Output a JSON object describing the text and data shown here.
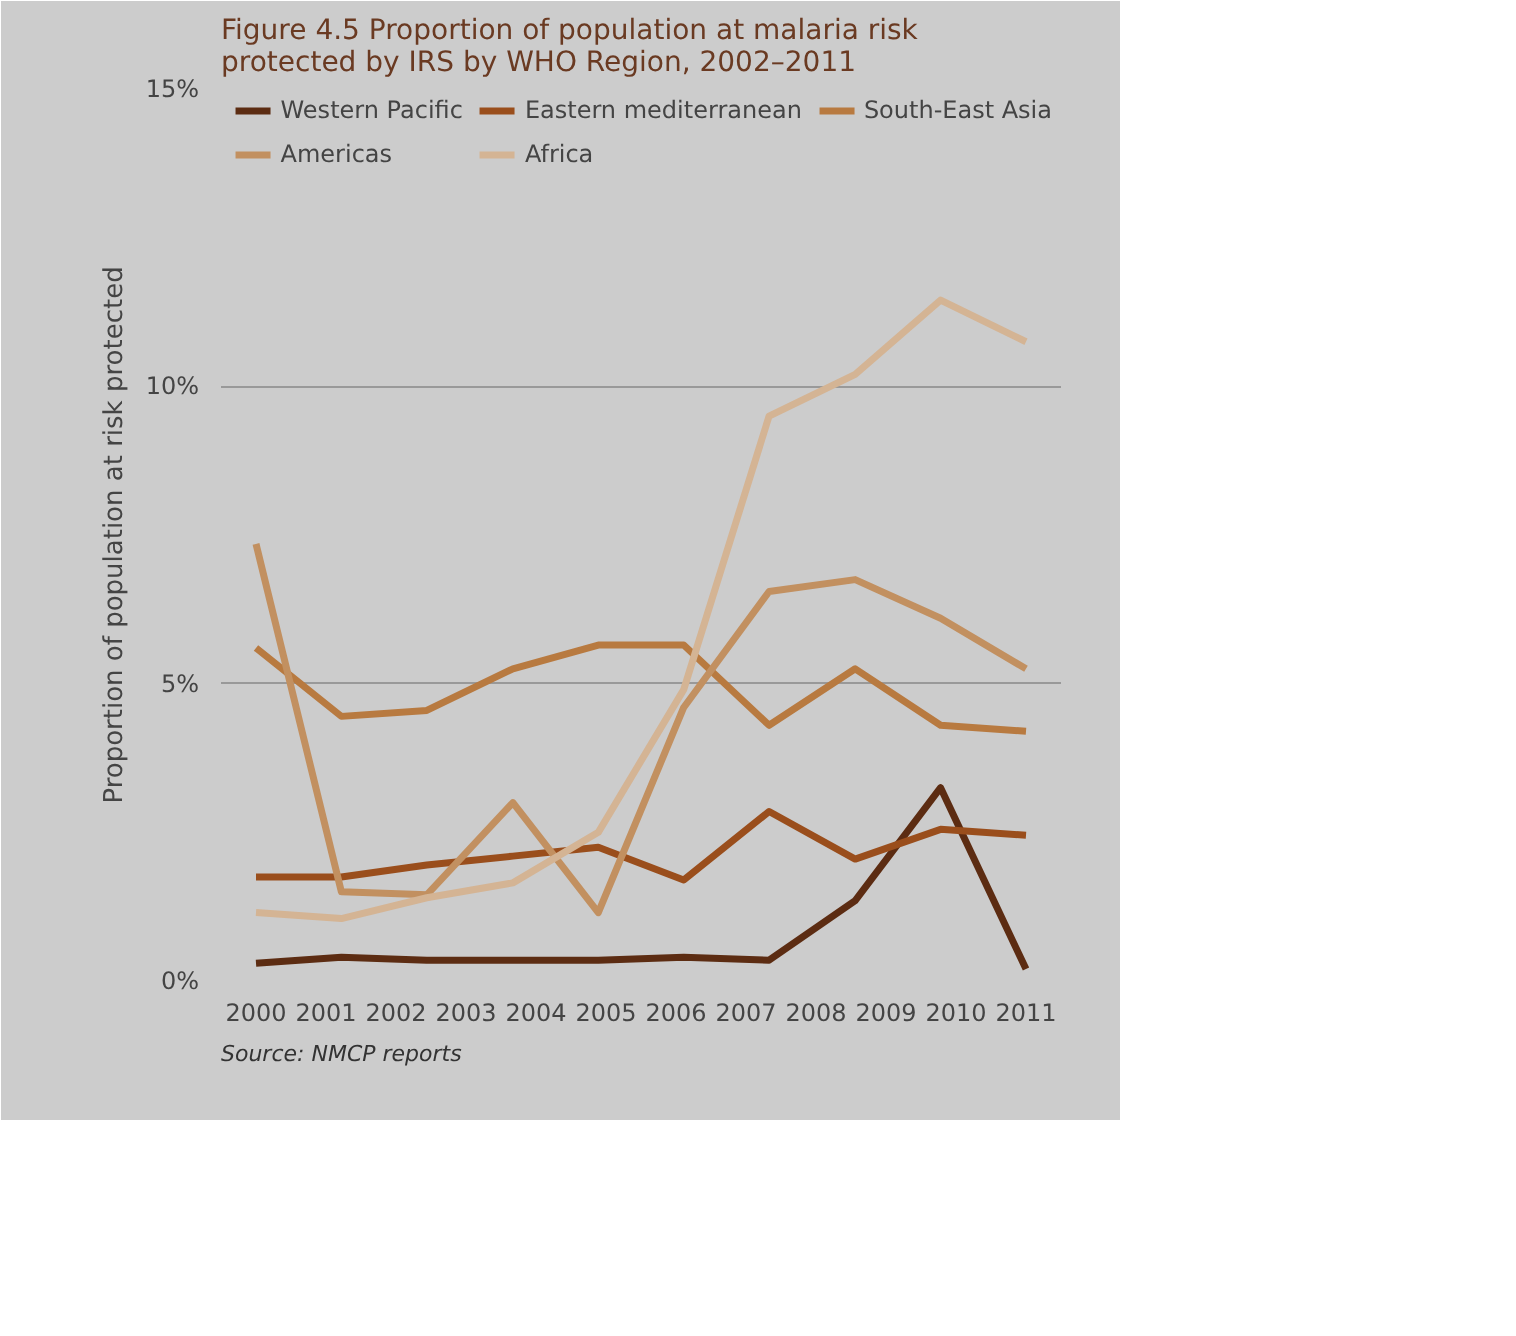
{
  "chart_data": {
    "type": "line",
    "title": "Figure 4.5 Proportion of population at malaria risk protected by IRS by WHO Region, 2002–2011",
    "ylabel": "Proportion of population at risk protected",
    "annotations": [
      "Source: NMCP reports"
    ],
    "x": [
      2000,
      2001.22,
      2002.44,
      2003.67,
      2004.89,
      2006.11,
      2007.33,
      2008.56,
      2009.78,
      2011
    ],
    "series": [
      {
        "name": "Western Pacific",
        "color": "#5c2c12",
        "values": [
          0.3,
          0.4,
          0.35,
          0.35,
          0.35,
          0.4,
          0.35,
          1.35,
          3.25,
          0.2
        ]
      },
      {
        "name": "Eastern mediterranean",
        "color": "#9a4e1c",
        "values": [
          1.75,
          1.75,
          1.95,
          2.1,
          2.25,
          1.7,
          2.85,
          2.05,
          2.55,
          2.45
        ]
      },
      {
        "name": "South-East Asia",
        "color": "#b87a40",
        "values": [
          5.6,
          4.45,
          4.55,
          5.25,
          5.65,
          5.65,
          4.3,
          5.25,
          4.3,
          4.2
        ]
      },
      {
        "name": "Americas",
        "color": "#c29060",
        "values": [
          7.35,
          1.5,
          1.45,
          3.0,
          1.15,
          4.6,
          6.55,
          6.75,
          6.1,
          5.25
        ]
      },
      {
        "name": "Africa",
        "color": "#d4b494",
        "values": [
          1.15,
          1.05,
          1.4,
          1.65,
          2.5,
          4.9,
          9.5,
          10.2,
          11.45,
          10.75
        ]
      }
    ],
    "xlim": [
      1999.5,
      2011.5
    ],
    "xticks": [
      2000,
      2001,
      2002,
      2003,
      2004,
      2005,
      2006,
      2007,
      2008,
      2009,
      2010,
      2011
    ],
    "ylim": [
      0,
      15
    ],
    "yticks": [
      {
        "value": 0,
        "label": "0%"
      },
      {
        "value": 5,
        "label": "5%"
      },
      {
        "value": 10,
        "label": "10%"
      },
      {
        "value": 15,
        "label": "15%"
      }
    ],
    "grid": "y",
    "legend": "top right",
    "marker": "none",
    "line_style": "solid"
  }
}
